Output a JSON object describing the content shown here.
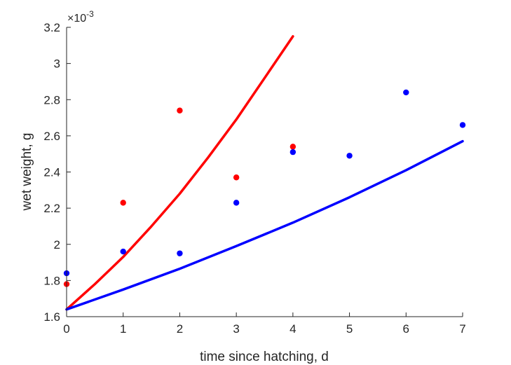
{
  "chart_data": {
    "type": "scatter",
    "title": "",
    "xlabel": "time since hatching, d",
    "ylabel": "wet weight, g",
    "y_exponent_label": "×10",
    "y_exponent_power": "-3",
    "xlim": [
      0,
      7
    ],
    "ylim": [
      1.6,
      3.2
    ],
    "x_ticks": [
      0,
      1,
      2,
      3,
      4,
      5,
      6,
      7
    ],
    "x_tick_labels": [
      "0",
      "1",
      "2",
      "3",
      "4",
      "5",
      "6",
      "7"
    ],
    "y_ticks": [
      1.6,
      1.8,
      2.0,
      2.2,
      2.4,
      2.6,
      2.8,
      3.0,
      3.2
    ],
    "y_tick_labels": [
      "1.6",
      "1.8",
      "2",
      "2.2",
      "2.4",
      "2.6",
      "2.8",
      "3",
      "3.2"
    ],
    "grid": false,
    "series": [
      {
        "color": "#ff0000",
        "points": {
          "x": [
            0,
            1,
            2,
            3,
            4
          ],
          "y": [
            1.78,
            2.23,
            2.74,
            2.37,
            2.54
          ]
        },
        "curve": {
          "x": [
            0,
            0.5,
            1,
            1.5,
            2,
            2.5,
            3,
            3.5,
            4
          ],
          "y": [
            1.64,
            1.78,
            1.93,
            2.1,
            2.28,
            2.48,
            2.69,
            2.92,
            3.15
          ]
        }
      },
      {
        "color": "#0000ff",
        "points": {
          "x": [
            0,
            1,
            2,
            3,
            4,
            5,
            6,
            7
          ],
          "y": [
            1.84,
            1.96,
            1.95,
            2.23,
            2.51,
            2.49,
            2.84,
            2.66
          ]
        },
        "curve": {
          "x": [
            0,
            1,
            2,
            3,
            4,
            5,
            6,
            7
          ],
          "y": [
            1.64,
            1.75,
            1.865,
            1.99,
            2.12,
            2.26,
            2.41,
            2.57
          ]
        }
      }
    ]
  }
}
